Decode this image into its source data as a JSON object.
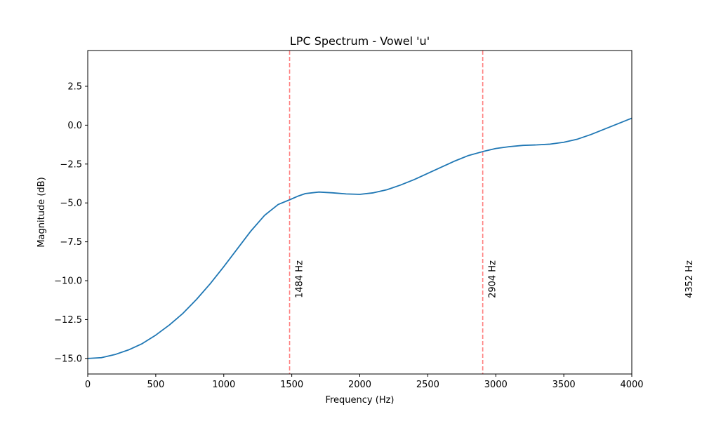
{
  "chart_data": {
    "type": "line",
    "title": "LPC Spectrum - Vowel 'u'",
    "xlabel": "Frequency (Hz)",
    "ylabel": "Magnitude (dB)",
    "xlim": [
      0,
      4000
    ],
    "ylim": [
      -16,
      4.8
    ],
    "x_ticks": [
      0,
      500,
      1000,
      1500,
      2000,
      2500,
      3000,
      3500,
      4000
    ],
    "x_tick_labels": [
      "0",
      "500",
      "1000",
      "1500",
      "2000",
      "2500",
      "3000",
      "3500",
      "4000"
    ],
    "y_ticks": [
      2.5,
      0.0,
      -2.5,
      -5.0,
      -7.5,
      -10.0,
      -12.5,
      -15.0
    ],
    "y_tick_labels": [
      "2.5",
      "0.0",
      "−2.5",
      "−5.0",
      "−7.5",
      "−10.0",
      "−12.5",
      "−15.0"
    ],
    "grid": false,
    "series": [
      {
        "color": "#1f77b4",
        "x": [
          0,
          100,
          200,
          300,
          400,
          500,
          600,
          700,
          800,
          900,
          1000,
          1100,
          1200,
          1300,
          1400,
          1484,
          1550,
          1600,
          1700,
          1800,
          1900,
          2000,
          2100,
          2200,
          2300,
          2400,
          2500,
          2600,
          2700,
          2800,
          2904,
          3000,
          3100,
          3200,
          3300,
          3400,
          3500,
          3600,
          3700,
          3800,
          3900,
          4000
        ],
        "y": [
          -15.0,
          -14.95,
          -14.75,
          -14.45,
          -14.05,
          -13.5,
          -12.85,
          -12.1,
          -11.2,
          -10.2,
          -9.1,
          -7.95,
          -6.8,
          -5.8,
          -5.1,
          -4.8,
          -4.55,
          -4.4,
          -4.3,
          -4.35,
          -4.42,
          -4.45,
          -4.35,
          -4.15,
          -3.85,
          -3.5,
          -3.1,
          -2.7,
          -2.3,
          -1.95,
          -1.7,
          -1.5,
          -1.38,
          -1.3,
          -1.27,
          -1.22,
          -1.1,
          -0.9,
          -0.6,
          -0.25,
          0.1,
          0.45
        ]
      }
    ],
    "peaks": [
      {
        "freq": 1484,
        "label": "1484 Hz"
      },
      {
        "freq": 2904,
        "label": "2904 Hz"
      },
      {
        "freq": 4352,
        "label": "4352 Hz"
      }
    ],
    "peak_line_color": "#ff7f7f",
    "axes_color": "#000000"
  }
}
